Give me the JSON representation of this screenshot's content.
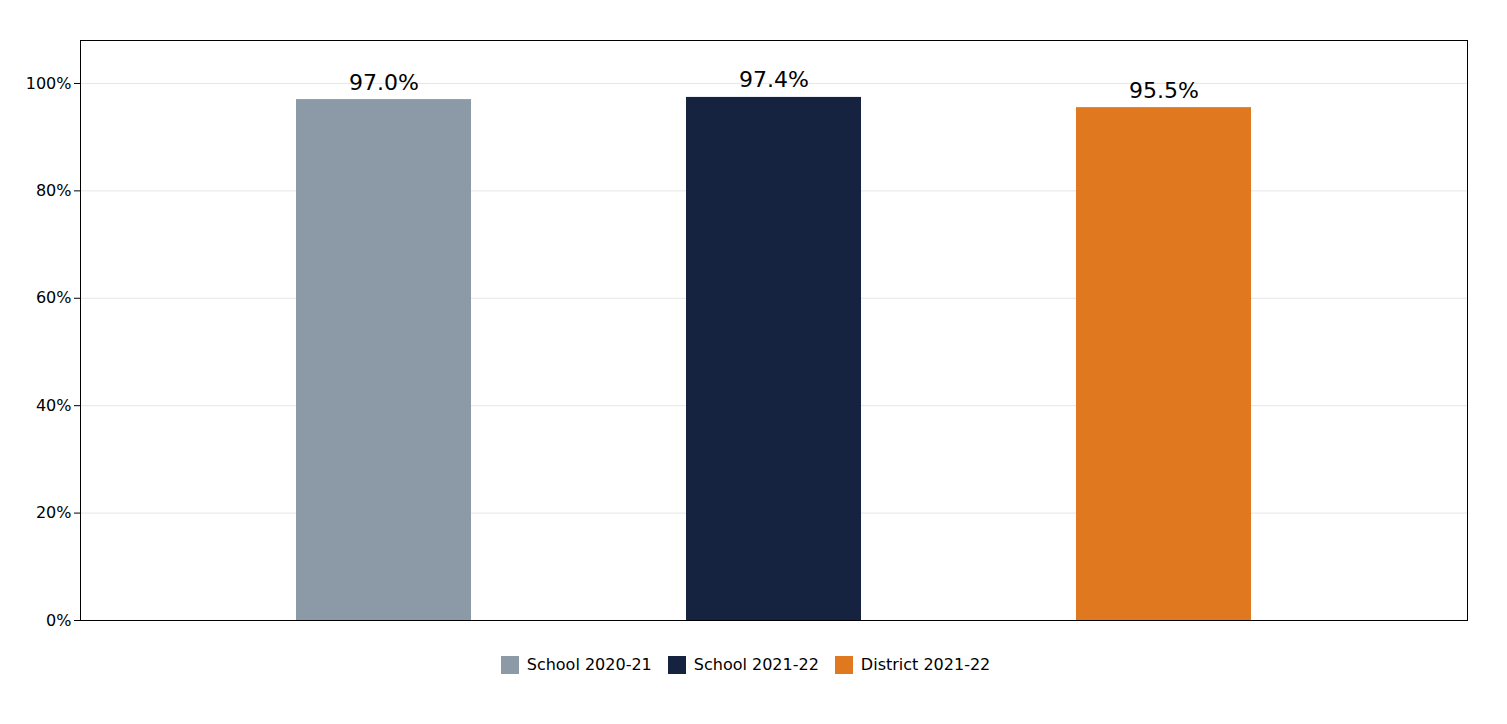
{
  "chart_data": {
    "type": "bar",
    "categories": [
      "School 2020-21",
      "School 2021-22",
      "District 2021-22"
    ],
    "values": [
      97.0,
      97.4,
      95.5
    ],
    "value_labels": [
      "97.0%",
      "97.4%",
      "95.5%"
    ],
    "colors": [
      "#8C9AA8",
      "#152240",
      "#E07820"
    ],
    "ylim": [
      0,
      108
    ],
    "yticks": [
      {
        "value": 0,
        "label": "0%"
      },
      {
        "value": 20,
        "label": "20%"
      },
      {
        "value": 40,
        "label": "40%"
      },
      {
        "value": 60,
        "label": "60%"
      },
      {
        "value": 80,
        "label": "80%"
      },
      {
        "value": 100,
        "label": "100%"
      }
    ],
    "grid": true,
    "legend": "bottom",
    "data_labels": true,
    "tick_labels": "y"
  }
}
